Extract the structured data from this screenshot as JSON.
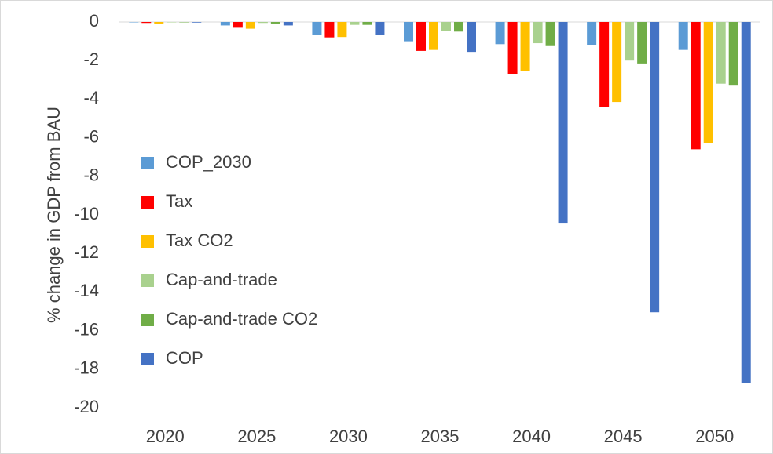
{
  "chart_data": {
    "type": "bar",
    "y_label": "% change in GDP from BAU",
    "categories": [
      "2020",
      "2025",
      "2030",
      "2035",
      "2040",
      "2045",
      "2050"
    ],
    "series": [
      {
        "name": "COP_2030",
        "color": "#5b9bd5",
        "values": [
          -0.02,
          -0.18,
          -0.65,
          -1.0,
          -1.15,
          -1.2,
          -1.45
        ]
      },
      {
        "name": "Tax",
        "color": "#ff0000",
        "values": [
          -0.05,
          -0.3,
          -0.8,
          -1.5,
          -2.7,
          -4.4,
          -6.6
        ]
      },
      {
        "name": "Tax CO2",
        "color": "#ffc000",
        "values": [
          -0.08,
          -0.35,
          -0.78,
          -1.45,
          -2.55,
          -4.15,
          -6.3
        ]
      },
      {
        "name": "Cap-and-trade",
        "color": "#a9d18e",
        "values": [
          -0.02,
          -0.05,
          -0.15,
          -0.45,
          -1.1,
          -2.0,
          -3.2
        ]
      },
      {
        "name": "Cap-and-trade CO2",
        "color": "#70ad47",
        "values": [
          -0.02,
          -0.08,
          -0.15,
          -0.5,
          -1.25,
          -2.15,
          -3.3
        ]
      },
      {
        "name": "COP",
        "color": "#4472c4",
        "values": [
          -0.03,
          -0.18,
          -0.65,
          -1.55,
          -10.45,
          -15.05,
          -18.7
        ]
      }
    ],
    "ylim": [
      -20,
      0
    ],
    "yticks": [
      0,
      -2,
      -4,
      -6,
      -8,
      -10,
      -12,
      -14,
      -16,
      -18,
      -20
    ],
    "legend": "left"
  }
}
